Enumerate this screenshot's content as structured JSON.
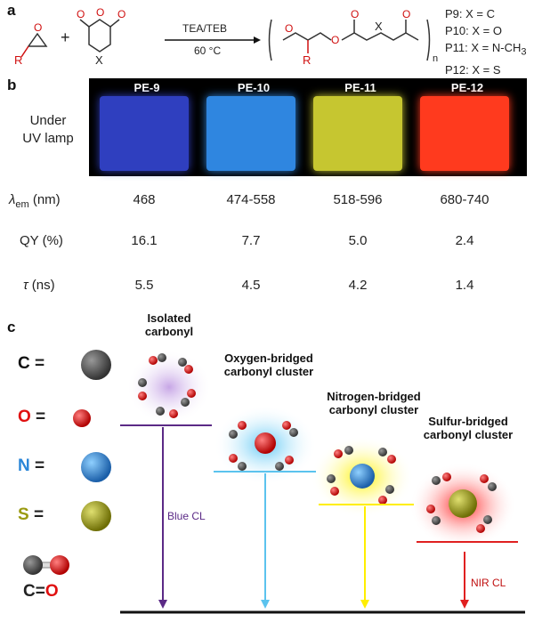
{
  "panel_a": {
    "letter": "a",
    "conditions_top": "TEA/TEB",
    "conditions_bottom": "60 °C",
    "r_label_reactant": "R",
    "x_label_reactant": "X",
    "r_label_product": "R",
    "x_label_product": "X",
    "plus": "+",
    "subscript_n": "n",
    "polymer_legend": [
      "P9: X = C",
      "P10: X = O",
      "P11: X = N-CH",
      "P12: X = S"
    ],
    "ch3_subscript": "3"
  },
  "panel_b": {
    "letter": "b",
    "row_label_uv_1": "Under",
    "row_label_uv_2": "UV lamp",
    "columns": [
      "PE-9",
      "PE-10",
      "PE-11",
      "PE-12"
    ],
    "swatch_colors": [
      "#2f3fbf",
      "#2f86e0",
      "#c6c630",
      "#ff3a1e"
    ],
    "lambda_symbol": "λ",
    "lambda_sub": "em",
    "lambda_unit": " (nm)",
    "lambda_values": [
      "468",
      "474-558",
      "518-596",
      "680-740"
    ],
    "qy_label": "QY (%)",
    "qy_values": [
      "16.1",
      "7.7",
      "5.0",
      "2.4"
    ],
    "tau_symbol": "τ",
    "tau_unit": " (ns)",
    "tau_values": [
      "5.5",
      "4.5",
      "4.2",
      "1.4"
    ]
  },
  "panel_c": {
    "letter": "c",
    "legend": [
      {
        "atom": "C",
        "eq": " =",
        "color": "#111111",
        "ball": "#555555"
      },
      {
        "atom": "O",
        "eq": " =",
        "color": "#e01010",
        "ball": "#e01010"
      },
      {
        "atom": "N",
        "eq": " =",
        "color": "#2a86d8",
        "ball": "#2a86d8"
      },
      {
        "atom": "S",
        "eq": " =",
        "color": "#9a9a10",
        "ball": "#9a9a10"
      }
    ],
    "co_label_c": "C",
    "co_label_eq": "=",
    "co_label_o": "O",
    "clusters": [
      {
        "line1": "Isolated",
        "line2": "carbonyl"
      },
      {
        "line1": "Oxygen-bridged",
        "line2": "carbonyl cluster"
      },
      {
        "line1": "Nitrogen-bridged",
        "line2": "carbonyl cluster"
      },
      {
        "line1": "Sulfur-bridged",
        "line2": "carbonyl cluster"
      }
    ],
    "level_colors": [
      "#5b2a86",
      "#5bc3ee",
      "#ffee00",
      "#e02020"
    ],
    "blue_cl": "Blue CL",
    "nir_cl": "NIR CL"
  }
}
